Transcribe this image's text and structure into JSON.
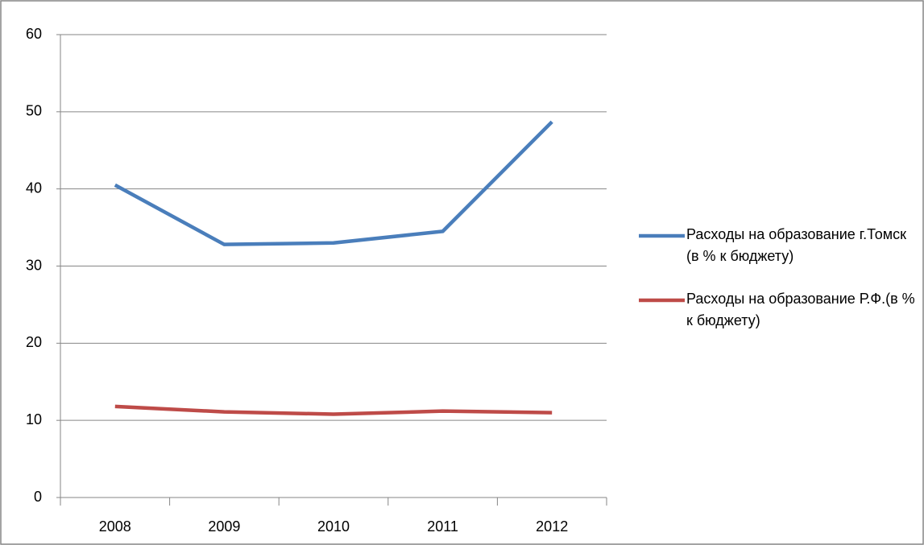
{
  "chart_data": {
    "type": "line",
    "categories": [
      "2008",
      "2009",
      "2010",
      "2011",
      "2012"
    ],
    "series": [
      {
        "name": "Расходы на образование г.Томск (в % к бюджету)",
        "color": "#4a7ebb",
        "values": [
          40.5,
          32.8,
          33.0,
          34.5,
          48.7
        ]
      },
      {
        "name": "Расходы на образование Р.Ф.(в % к бюджету)",
        "color": "#be4b48",
        "values": [
          11.8,
          11.1,
          10.8,
          11.2,
          11.0
        ]
      }
    ],
    "ylim": [
      0,
      60
    ],
    "yticks": [
      0,
      10,
      20,
      30,
      40,
      50,
      60
    ],
    "grid": true,
    "legend": "right"
  }
}
